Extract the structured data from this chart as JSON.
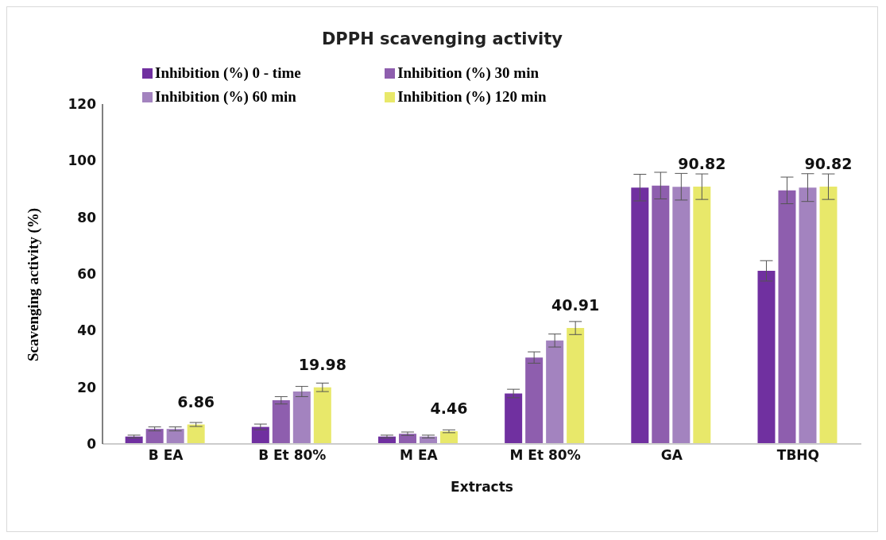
{
  "chart_data": {
    "type": "bar",
    "title": "DPPH scavenging activity",
    "xlabel": "Extracts",
    "ylabel": "Scavenging activity (%)",
    "categories": [
      "B EA",
      "B Et 80%",
      "M EA",
      "M Et 80%",
      "GA",
      "TBHQ"
    ],
    "series": [
      {
        "name": "Inhibition (%) 0 - time",
        "color": "#7030a0",
        "values": [
          2.6,
          6.0,
          2.6,
          17.8,
          90.5,
          61.1
        ],
        "errors": [
          0.5,
          1.0,
          0.5,
          1.5,
          4.7,
          3.6
        ]
      },
      {
        "name": "Inhibition (%) 30 min",
        "color": "#8e5eae",
        "values": [
          5.3,
          15.4,
          3.6,
          30.5,
          91.2,
          89.5
        ],
        "errors": [
          0.7,
          1.3,
          0.6,
          2.0,
          4.7,
          4.7
        ]
      },
      {
        "name": "Inhibition (%) 60 min",
        "color": "#a383bf",
        "values": [
          5.3,
          18.5,
          2.6,
          36.5,
          90.8,
          90.5
        ],
        "errors": [
          0.7,
          1.8,
          0.5,
          2.3,
          4.7,
          4.9
        ]
      },
      {
        "name": "Inhibition (%) 120 min",
        "color": "#e8e86a",
        "values": [
          6.86,
          19.98,
          4.46,
          40.91,
          90.82,
          90.82
        ],
        "errors": [
          0.7,
          1.5,
          0.5,
          2.3,
          4.5,
          4.5
        ],
        "value_labels": [
          "6.86",
          "19.98",
          "4.46",
          "40.91",
          "90.82",
          "90.82"
        ]
      }
    ],
    "ylim": [
      0,
      120
    ],
    "yticks": [
      0,
      20,
      40,
      60,
      80,
      100,
      120
    ],
    "grid": false,
    "legend": "top left"
  }
}
